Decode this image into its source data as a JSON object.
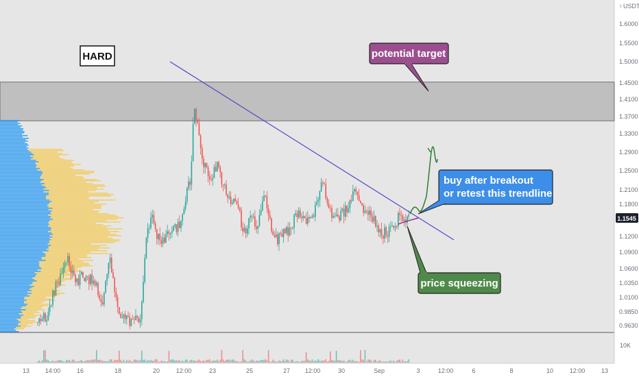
{
  "chart_data": {
    "type": "candlestick",
    "symbol_label": "HARD",
    "currency_label": "USDT",
    "currency_prefix": "↑",
    "last_price": "1.1545",
    "volume_axis_label": "10K",
    "y_ticks": [
      "1.6000",
      "1.5500",
      "1.5000",
      "1.4500",
      "1.4100",
      "1.3700",
      "1.3300",
      "1.2900",
      "1.2500",
      "1.2100",
      "1.1800",
      "1.1200",
      "1.0900",
      "1.0600",
      "1.0350",
      "1.0100",
      "0.9850",
      "0.9630"
    ],
    "x_ticks": [
      "13",
      "14:00",
      "16",
      "18",
      "20",
      "12:00",
      "23",
      "25",
      "27",
      "12:00",
      "30",
      "Sep",
      "3",
      "12:00",
      "6",
      "8",
      "10",
      "12:00",
      "13"
    ],
    "resistance_zone": {
      "low": 1.36,
      "high": 1.452
    },
    "trendline": {
      "from": {
        "x_tick": "12:00",
        "price": 1.5
      },
      "to": {
        "x_tick": "12:00",
        "price": 1.1
      }
    },
    "annotations": [
      {
        "name": "potential-target",
        "text": "potential target",
        "fill": "#9b4f8f"
      },
      {
        "name": "buy-after-breakout",
        "lines": [
          "buy after breakout",
          "or retest this trendline"
        ],
        "fill": "#3d8ee8"
      },
      {
        "name": "price-squeezing",
        "text": "price squeezing",
        "fill": "#4f8a4a"
      }
    ],
    "colors": {
      "up": "#26a69a",
      "down": "#ef5350",
      "trendline": "#4f46c8",
      "zone": "#9e9e9e",
      "last_price_bg": "#1e222d",
      "volume_profile_up": "#f5c542",
      "volume_profile_down": "#2196f3",
      "projection": "#2e7d32"
    }
  }
}
